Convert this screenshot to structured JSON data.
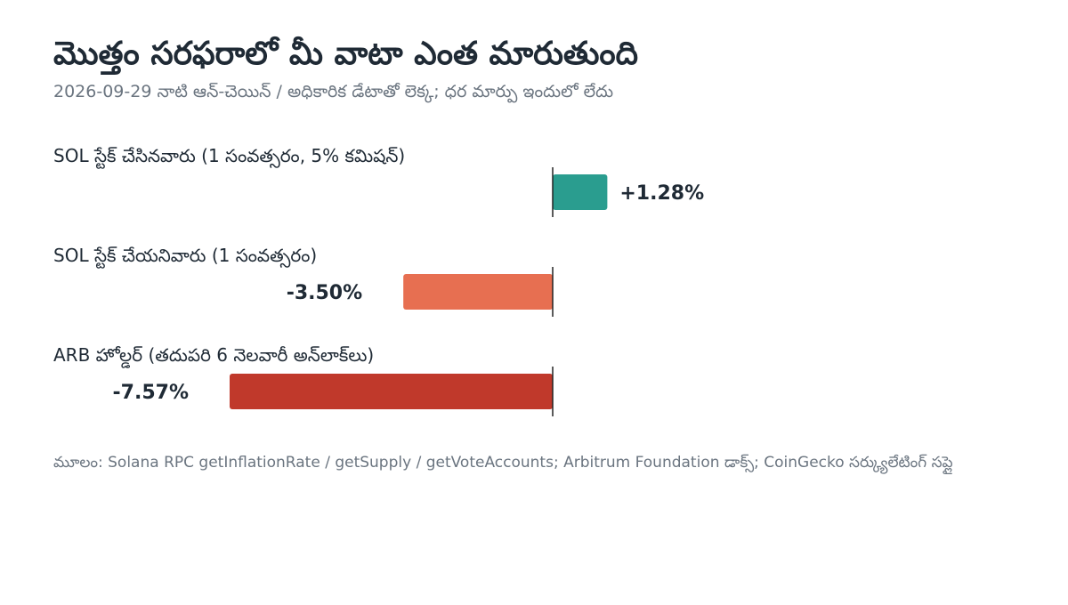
{
  "chart_data": {
    "type": "bar",
    "orientation": "horizontal",
    "title": "మొత్తం సరఫరాలో మీ వాటా ఎంత మారుతుంది",
    "subtitle": "2026-09-29 నాటి ఆన్-చెయిన్ / అధికారిక డేటాతో లెక్క; ధర మార్పు ఇందులో లేదు",
    "source": "మూలం: Solana RPC getInflationRate / getSupply / getVoteAccounts; Arbitrum Foundation డాక్స్; CoinGecko సర్క్యులేటింగ్ సప్లై",
    "categories": [
      "SOL స్టేక్ చేసినవారు (1 సంవత్సరం, 5% కమిషన్)",
      "SOL స్టేక్ చేయనివారు (1 సంవత్సరం)",
      "ARB హోల్డర్ (తదుపరి 6 నెలవారీ అన్‌లాక్‌లు)"
    ],
    "values": [
      1.28,
      -3.5,
      -7.57
    ],
    "value_labels": [
      "+1.28%",
      "-3.50%",
      "-7.57%"
    ],
    "colors": [
      "#2a9d8f",
      "#e76f51",
      "#c0392b"
    ],
    "unit": "%",
    "zero_line": true,
    "grid": false,
    "legend": "none"
  }
}
